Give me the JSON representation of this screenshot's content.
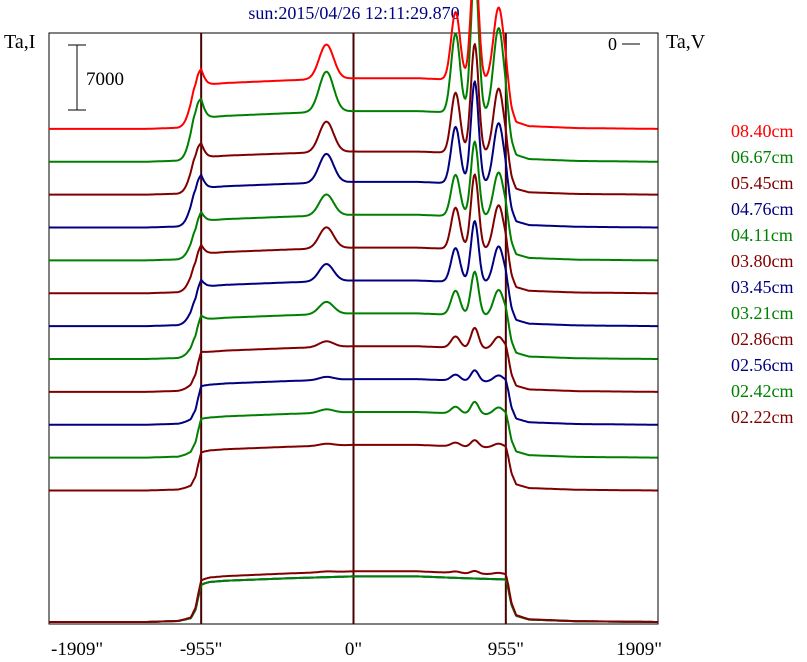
{
  "chart_data": {
    "type": "line",
    "title": "sun:2015/04/26 12:11:29.870",
    "left_axis_label": "Ta,I",
    "right_axis_label": "Ta,V",
    "right_axis_zero_label": "0",
    "scale_bar": {
      "label": "7000",
      "value": 7000
    },
    "x_range": [
      -1909,
      1909
    ],
    "x_ticks": [
      -1909,
      -955,
      0,
      955,
      1909
    ],
    "x_tick_labels": [
      "-1909\"",
      "-955\"",
      "0\"",
      "955\"",
      "1909\""
    ],
    "vertical_markers": [
      -955,
      0,
      955
    ],
    "offset_between_curves": 2400,
    "y_range": [
      0,
      43000
    ],
    "colors": {
      "red": "#ff0000",
      "green": "#008000",
      "maroon": "#800000",
      "navy": "#000080",
      "axes": "#000000",
      "marker": "#4a0000",
      "title": "#000080"
    },
    "shape_template": {
      "description": "common scan profile shape in data units, scaled per series",
      "disk": [
        [
          -1909,
          0
        ],
        [
          -1300,
          0
        ],
        [
          -1100,
          80
        ],
        [
          -1020,
          300
        ],
        [
          -990,
          1000
        ],
        [
          -970,
          2200
        ],
        [
          -955,
          3000
        ],
        [
          -930,
          3150
        ],
        [
          -900,
          3250
        ],
        [
          -800,
          3350
        ],
        [
          -400,
          3550
        ],
        [
          0,
          3700
        ],
        [
          400,
          3700
        ],
        [
          700,
          3550
        ],
        [
          955,
          3450
        ],
        [
          970,
          2700
        ],
        [
          990,
          1400
        ],
        [
          1020,
          500
        ],
        [
          1100,
          200
        ],
        [
          1400,
          60
        ],
        [
          1909,
          0
        ]
      ],
      "peaks": [
        {
          "x": 640,
          "w": 28,
          "h": 0.55
        },
        {
          "x": 760,
          "w": 24,
          "h": 1.0
        },
        {
          "x": 910,
          "w": 32,
          "h": 0.6
        },
        {
          "x": -170,
          "w": 45,
          "h": 0.28
        },
        {
          "x": -990,
          "w": 35,
          "h": 0.25
        }
      ]
    },
    "series": [
      {
        "name": "08.40cm",
        "color": "#ff0000",
        "offset": 36000,
        "peak_amp": 9000,
        "disk_scale": 1.0
      },
      {
        "name": "06.67cm",
        "color": "#008000",
        "offset": 33600,
        "peak_amp": 10500,
        "disk_scale": 1.0
      },
      {
        "name": "05.45cm",
        "color": "#800000",
        "offset": 31200,
        "peak_amp": 8000,
        "disk_scale": 0.85
      },
      {
        "name": "04.76cm",
        "color": "#000080",
        "offset": 28800,
        "peak_amp": 7500,
        "disk_scale": 0.9
      },
      {
        "name": "04.11cm",
        "color": "#008000",
        "offset": 26400,
        "peak_amp": 5500,
        "disk_scale": 0.9
      },
      {
        "name": "03.80cm",
        "color": "#800000",
        "offset": 24000,
        "peak_amp": 5500,
        "disk_scale": 0.9
      },
      {
        "name": "03.45cm",
        "color": "#000080",
        "offset": 21600,
        "peak_amp": 4500,
        "disk_scale": 0.9
      },
      {
        "name": "03.21cm",
        "color": "#008000",
        "offset": 19200,
        "peak_amp": 3200,
        "disk_scale": 0.9
      },
      {
        "name": "02.86cm",
        "color": "#800000",
        "offset": 16800,
        "peak_amp": 1500,
        "disk_scale": 0.9
      },
      {
        "name": "02.56cm",
        "color": "#000080",
        "offset": 14400,
        "peak_amp": 800,
        "disk_scale": 0.9
      },
      {
        "name": "02.42cm",
        "color": "#008000",
        "offset": 12000,
        "peak_amp": 900,
        "disk_scale": 0.9
      },
      {
        "name": "02.22cm",
        "color": "#800000",
        "offset": 9600,
        "peak_amp": 500,
        "disk_scale": 0.9
      },
      {
        "name": "",
        "color": "#800000",
        "offset": 0,
        "peak_amp": 200,
        "disk_scale": 1.0,
        "show_label": false
      },
      {
        "name": "",
        "color": "#008000",
        "offset": 0,
        "peak_amp": 0,
        "disk_scale": 0.9,
        "show_label": false
      },
      {
        "name": "",
        "color": "#000080",
        "offset": 0,
        "peak_amp": 0,
        "disk_scale": 0.9,
        "show_label": false
      }
    ],
    "legend_placement": "right",
    "grid": false
  }
}
